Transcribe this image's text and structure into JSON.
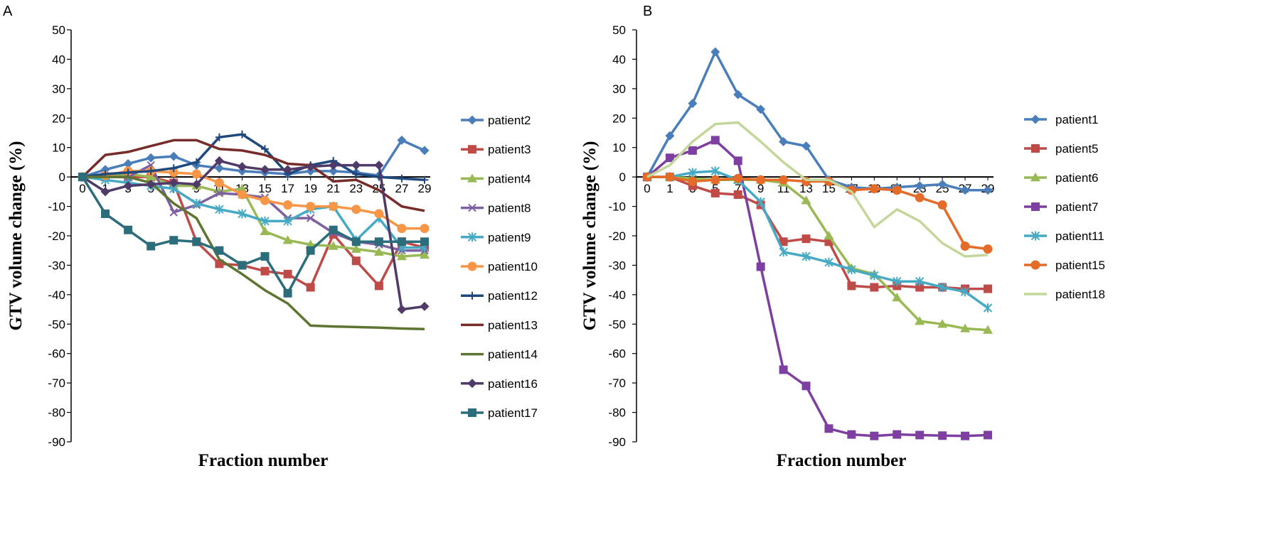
{
  "chart_data": [
    {
      "panel": "A",
      "type": "line",
      "xlabel": "Fraction number",
      "ylabel": "GTV volume change (%)",
      "ylim": [
        -90,
        50
      ],
      "yticks": [
        50,
        40,
        30,
        20,
        10,
        0,
        -10,
        -20,
        -30,
        -40,
        -50,
        -60,
        -70,
        -80,
        -90
      ],
      "xticks": [
        0,
        1,
        3,
        5,
        7,
        9,
        11,
        13,
        15,
        17,
        19,
        21,
        23,
        25,
        27,
        29
      ],
      "legend_position": "right",
      "series": [
        {
          "name": "patient2",
          "color": "#4a7ebb",
          "marker": "diamond",
          "values": [
            0,
            2.5,
            4.5,
            6.5,
            7,
            4,
            3,
            2,
            1.5,
            1,
            2,
            2,
            1.5,
            0.5,
            12.5,
            9
          ]
        },
        {
          "name": "patient3",
          "color": "#be4b48",
          "marker": "square",
          "values": [
            0,
            0,
            0,
            0,
            -2,
            -22,
            -29.5,
            -30,
            -32,
            -33,
            -37.5,
            -19.5,
            -28.5,
            -37,
            -22,
            -24
          ]
        },
        {
          "name": "patient4",
          "color": "#98b954",
          "marker": "triangle",
          "values": [
            0,
            0,
            1,
            0,
            -3,
            -3,
            -5,
            -4,
            -18.5,
            -21.5,
            -23,
            -23.5,
            -24.5,
            -25.5,
            -27,
            -26.5
          ]
        },
        {
          "name": "patient8",
          "color": "#7d60a0",
          "marker": "x",
          "values": [
            0,
            0,
            0,
            4,
            -12,
            -9.5,
            -5.5,
            -6,
            -7,
            -14,
            -14,
            -19,
            -22,
            -23,
            -25,
            -25
          ]
        },
        {
          "name": "patient9",
          "color": "#46aac5",
          "marker": "star",
          "values": [
            0,
            -1,
            -2,
            -3,
            -4,
            -9,
            -11,
            -12.5,
            -15,
            -15,
            -11,
            -10,
            -21.5,
            -14,
            -24,
            -24
          ]
        },
        {
          "name": "patient10",
          "color": "#f79646",
          "marker": "circle",
          "values": [
            0,
            0.5,
            2,
            2,
            1.5,
            1,
            -2,
            -6,
            -8,
            -9.5,
            -10,
            -10,
            -11,
            -12.5,
            -17.5,
            -17.5
          ]
        },
        {
          "name": "patient12",
          "color": "#1f497d",
          "marker": "plus",
          "values": [
            0,
            1,
            1.5,
            2,
            3,
            5,
            13.5,
            14.5,
            9.5,
            1,
            4,
            5.5,
            1,
            0,
            -0.5,
            -1
          ]
        },
        {
          "name": "patient13",
          "color": "#772c2a",
          "marker": "none",
          "values": [
            0,
            7.5,
            8.5,
            10.5,
            12.5,
            12.5,
            9.5,
            9,
            7.5,
            4.5,
            4,
            -1.5,
            -1,
            -4.5,
            -10,
            -11.5
          ]
        },
        {
          "name": "patient14",
          "color": "#5e7532",
          "marker": "none",
          "values": [
            0,
            0,
            0,
            -2,
            -9,
            -14,
            -28,
            -33,
            -38.5,
            -43,
            -50.5,
            -50.8,
            -51,
            -51.2,
            -51.5,
            -51.7
          ]
        },
        {
          "name": "patient16",
          "color": "#4f3a68",
          "marker": "diamond",
          "values": [
            0,
            -5,
            -3,
            -2.5,
            -2,
            -2.5,
            5.5,
            3.5,
            2.5,
            2.5,
            3.5,
            4,
            4,
            4,
            -45,
            -44
          ]
        },
        {
          "name": "patient17",
          "color": "#2c6d7c",
          "marker": "square",
          "values": [
            0,
            -12.5,
            -18,
            -23.5,
            -21.5,
            -22,
            -25,
            -30,
            -27,
            -39.5,
            -25,
            -18,
            -22,
            -22,
            -22,
            -22
          ]
        }
      ]
    },
    {
      "panel": "B",
      "type": "line",
      "xlabel": "Fraction number",
      "ylabel": "GTV volume change (%)",
      "ylim": [
        -90,
        50
      ],
      "yticks": [
        50,
        40,
        30,
        20,
        10,
        0,
        -10,
        -20,
        -30,
        -40,
        -50,
        -60,
        -70,
        -80,
        -90
      ],
      "xticks": [
        0,
        1,
        3,
        5,
        7,
        9,
        11,
        13,
        15,
        17,
        19,
        21,
        23,
        25,
        27,
        29
      ],
      "legend_position": "right",
      "series": [
        {
          "name": "patient1",
          "color": "#4a7ebb",
          "marker": "diamond",
          "values": [
            0,
            14,
            25,
            42.5,
            28,
            23,
            12,
            10.5,
            -1,
            -3.5,
            -4,
            -3.5,
            -3,
            -2.5,
            -4.5,
            -4.5
          ]
        },
        {
          "name": "patient5",
          "color": "#be4b48",
          "marker": "square",
          "values": [
            0,
            0,
            -3,
            -5.5,
            -6,
            -9.5,
            -22,
            -21,
            -22,
            -37,
            -37.5,
            -37,
            -37.5,
            -37.5,
            -38,
            -38
          ]
        },
        {
          "name": "patient6",
          "color": "#98b954",
          "marker": "triangle",
          "values": [
            0,
            0,
            -0.5,
            -1,
            -1,
            -1,
            -2,
            -8,
            -20,
            -31,
            -33,
            -41,
            -49,
            -50,
            -51.5,
            -52
          ]
        },
        {
          "name": "patient7",
          "color": "#7d3fa0",
          "marker": "square",
          "values": [
            0,
            6.5,
            9,
            12.5,
            5.5,
            -30.5,
            -65.5,
            -71,
            -85.5,
            -87.5,
            -88,
            -87.5,
            -87.7,
            -87.9,
            -88,
            -87.7
          ]
        },
        {
          "name": "patient11",
          "color": "#46aac5",
          "marker": "star",
          "values": [
            0,
            0,
            1.5,
            2,
            -1,
            -8.5,
            -25.5,
            -27,
            -29,
            -31.5,
            -33.5,
            -35.5,
            -35.5,
            -37.5,
            -39,
            -44.5
          ]
        },
        {
          "name": "patient15",
          "color": "#e46c28",
          "marker": "circle",
          "values": [
            0,
            0,
            -1.5,
            -1,
            -0.5,
            -1,
            -1,
            -1.5,
            -1.5,
            -4.5,
            -4,
            -4.5,
            -7,
            -9.5,
            -23.5,
            -24.5
          ]
        },
        {
          "name": "patient18",
          "color": "#c4d79b",
          "marker": "none",
          "values": [
            0,
            4,
            12,
            18,
            18.5,
            12,
            5,
            -1,
            -1,
            -5,
            -17,
            -11,
            -15,
            -22.5,
            -27,
            -26.5
          ]
        }
      ]
    }
  ],
  "panels": {
    "a_label": "A",
    "b_label": "B"
  }
}
